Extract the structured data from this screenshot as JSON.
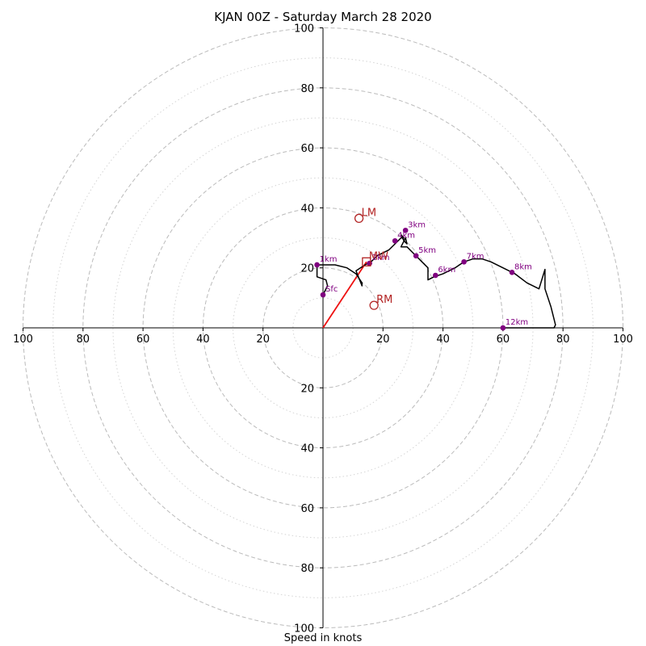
{
  "chart_data": {
    "type": "hodograph",
    "title": "KJAN 00Z - Saturday March 28 2020",
    "xlabel": "Speed in knots",
    "range": [
      -100,
      100
    ],
    "ring_major": [
      20,
      40,
      60,
      80,
      100
    ],
    "ring_minor": [
      10,
      30,
      50,
      70,
      90
    ],
    "tick_values": [
      20,
      40,
      60,
      80,
      100
    ],
    "grid": true,
    "colors": {
      "trace": "#000000",
      "heights": "#800080",
      "motion": "#b22222",
      "shear": "#ee1111",
      "grid": "#bbbbbb"
    },
    "hodograph_trace": [
      [
        0,
        11
      ],
      [
        1.5,
        14
      ],
      [
        1,
        16
      ],
      [
        -2,
        17
      ],
      [
        -2,
        21
      ],
      [
        4,
        21
      ],
      [
        8,
        20
      ],
      [
        11,
        18
      ],
      [
        13,
        15
      ],
      [
        13,
        14
      ],
      [
        11,
        19
      ],
      [
        14,
        21
      ],
      [
        16,
        22
      ],
      [
        18,
        24
      ],
      [
        22,
        26
      ],
      [
        24,
        28
      ],
      [
        26,
        30
      ],
      [
        27,
        30
      ],
      [
        26,
        31
      ],
      [
        27,
        29
      ],
      [
        28,
        28
      ],
      [
        27.5,
        30
      ],
      [
        27,
        29
      ],
      [
        26,
        27
      ],
      [
        28,
        27
      ],
      [
        30,
        25
      ],
      [
        31,
        24
      ],
      [
        33,
        22
      ],
      [
        35,
        20
      ],
      [
        35,
        16
      ],
      [
        37,
        17
      ],
      [
        40,
        18
      ],
      [
        44,
        20
      ],
      [
        47,
        22
      ],
      [
        50,
        23
      ],
      [
        53,
        23
      ],
      [
        56,
        22
      ],
      [
        60,
        20
      ],
      [
        64,
        18
      ],
      [
        68,
        15
      ],
      [
        72,
        13
      ],
      [
        74,
        19.5
      ],
      [
        74,
        13
      ],
      [
        76,
        7
      ],
      [
        77.5,
        1
      ],
      [
        77,
        0
      ],
      [
        60,
        0
      ]
    ],
    "height_markers": [
      {
        "label": "Sfc",
        "u": 0,
        "v": 11
      },
      {
        "label": "1km",
        "u": -2,
        "v": 21
      },
      {
        "label": "2km",
        "u": 15.5,
        "v": 21.5
      },
      {
        "label": "3km",
        "u": 27.5,
        "v": 32.5
      },
      {
        "label": "4km",
        "u": 24,
        "v": 29
      },
      {
        "label": "5km",
        "u": 31,
        "v": 24
      },
      {
        "label": "6km",
        "u": 37.5,
        "v": 17.5
      },
      {
        "label": "7km",
        "u": 47,
        "v": 22
      },
      {
        "label": "8km",
        "u": 63,
        "v": 18.5
      },
      {
        "label": "12km",
        "u": 60,
        "v": 0
      }
    ],
    "storm_motion": [
      {
        "label": "LM",
        "u": 12,
        "v": 36.5
      },
      {
        "label": "RM",
        "u": 17,
        "v": 7.5
      }
    ],
    "mean_wind": {
      "label": "MW",
      "u": 14.5,
      "v": 22
    },
    "shear_vector": {
      "from": [
        0,
        0
      ],
      "to": [
        14.5,
        22
      ]
    }
  }
}
